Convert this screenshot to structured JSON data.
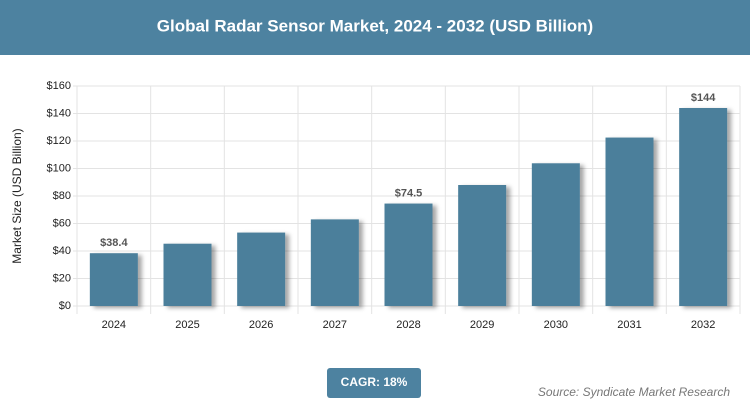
{
  "chart_data": {
    "type": "bar",
    "title": "Global Radar Sensor Market, 2024 - 2032 (USD Billion)",
    "y_label": "Market Size (USD Billion)",
    "categories": [
      "2024",
      "2025",
      "2026",
      "2027",
      "2028",
      "2029",
      "2030",
      "2031",
      "2032"
    ],
    "values": [
      38.4,
      45.3,
      53.4,
      63,
      74.5,
      88,
      103.8,
      122.5,
      144
    ],
    "value_labels": [
      "$38.4",
      null,
      null,
      null,
      "$74.5",
      null,
      null,
      null,
      "$144"
    ],
    "color": "#4b7f9b",
    "ylim": [
      0,
      160
    ],
    "yticks": [
      {
        "value": 0,
        "label": "$0"
      },
      {
        "value": 20,
        "label": "$20"
      },
      {
        "value": 40,
        "label": "$40"
      },
      {
        "value": 60,
        "label": "$60"
      },
      {
        "value": 80,
        "label": "$80"
      },
      {
        "value": 100,
        "label": "$100"
      },
      {
        "value": 120,
        "label": "$120"
      },
      {
        "value": 140,
        "label": "$140"
      },
      {
        "value": 160,
        "label": "$160"
      }
    ],
    "grid": true,
    "badge": "CAGR: 18%",
    "source": "Source: Syndicate Market Research"
  }
}
